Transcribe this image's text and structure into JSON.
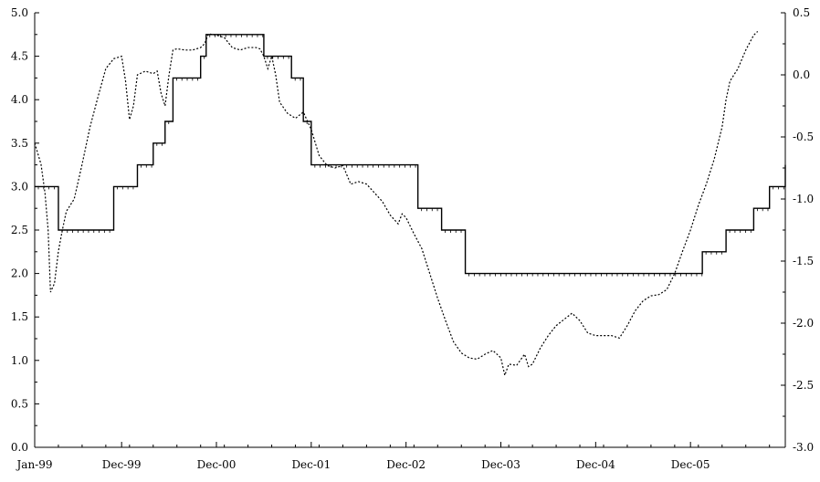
{
  "chart_data": {
    "type": "line",
    "x_tick_labels": [
      "Jan-99",
      "Dec-99",
      "Dec-00",
      "Dec-01",
      "Dec-02",
      "Dec-03",
      "Dec-04",
      "Dec-05"
    ],
    "x_tick_months": [
      0,
      11,
      23,
      35,
      47,
      59,
      71,
      83
    ],
    "x_range_months": [
      0,
      95
    ],
    "left_axis": {
      "ylim": [
        0.0,
        5.0
      ],
      "tick_labels": [
        "0.0",
        "0.5",
        "1.0",
        "1.5",
        "2.0",
        "2.5",
        "3.0",
        "3.5",
        "4.0",
        "4.5",
        "5.0"
      ]
    },
    "right_axis": {
      "ylim": [
        -3.0,
        0.5
      ],
      "tick_labels": [
        "-3.0",
        "-2.5",
        "-2.0",
        "-1.5",
        "-1.0",
        "-0.5",
        "0.0",
        "0.5"
      ]
    },
    "grid": false,
    "legend": "none",
    "series": [
      {
        "axis": "left",
        "style": "solid-step",
        "color": "#000000",
        "points": [
          [
            0,
            3.0
          ],
          [
            3,
            2.5
          ],
          [
            10,
            3.0
          ],
          [
            13,
            3.25
          ],
          [
            15,
            3.5
          ],
          [
            16.5,
            3.75
          ],
          [
            17.5,
            4.25
          ],
          [
            21,
            4.5
          ],
          [
            21.7,
            4.75
          ],
          [
            29,
            4.5
          ],
          [
            32.5,
            4.25
          ],
          [
            34,
            3.75
          ],
          [
            35,
            3.25
          ],
          [
            48.5,
            2.75
          ],
          [
            51.5,
            2.5
          ],
          [
            54.5,
            2.0
          ],
          [
            84.5,
            2.25
          ],
          [
            87.5,
            2.5
          ],
          [
            91,
            2.75
          ],
          [
            93,
            3.0
          ],
          [
            95,
            3.25
          ]
        ]
      },
      {
        "axis": "right",
        "style": "dotted",
        "color": "#000000",
        "points": [
          [
            0,
            -0.55
          ],
          [
            0.8,
            -0.72
          ],
          [
            1.3,
            -0.95
          ],
          [
            1.7,
            -1.25
          ],
          [
            2.0,
            -1.75
          ],
          [
            2.5,
            -1.68
          ],
          [
            3,
            -1.42
          ],
          [
            3.5,
            -1.25
          ],
          [
            4,
            -1.1
          ],
          [
            5,
            -1.0
          ],
          [
            6,
            -0.72
          ],
          [
            7,
            -0.42
          ],
          [
            8,
            -0.18
          ],
          [
            9,
            0.05
          ],
          [
            10,
            0.13
          ],
          [
            11,
            0.15
          ],
          [
            11.5,
            -0.05
          ],
          [
            12,
            -0.36
          ],
          [
            12.5,
            -0.25
          ],
          [
            13,
            0.0
          ],
          [
            14,
            0.03
          ],
          [
            15,
            0.01
          ],
          [
            15.5,
            0.03
          ],
          [
            16,
            -0.15
          ],
          [
            16.5,
            -0.25
          ],
          [
            17,
            0.0
          ],
          [
            17.5,
            0.2
          ],
          [
            18,
            0.21
          ],
          [
            19,
            0.2
          ],
          [
            20,
            0.2
          ],
          [
            21,
            0.22
          ],
          [
            21.5,
            0.25
          ],
          [
            22,
            0.33
          ],
          [
            23,
            0.32
          ],
          [
            24,
            0.3
          ],
          [
            25,
            0.22
          ],
          [
            26,
            0.2
          ],
          [
            27,
            0.22
          ],
          [
            28,
            0.22
          ],
          [
            28.5,
            0.21
          ],
          [
            29,
            0.15
          ],
          [
            29.5,
            0.05
          ],
          [
            30,
            0.15
          ],
          [
            30.5,
            0.0
          ],
          [
            31,
            -0.22
          ],
          [
            32,
            -0.31
          ],
          [
            33,
            -0.35
          ],
          [
            34,
            -0.3
          ],
          [
            35,
            -0.44
          ],
          [
            36,
            -0.65
          ],
          [
            37,
            -0.73
          ],
          [
            38,
            -0.75
          ],
          [
            39,
            -0.73
          ],
          [
            40,
            -0.88
          ],
          [
            41,
            -0.86
          ],
          [
            42,
            -0.88
          ],
          [
            43,
            -0.95
          ],
          [
            44,
            -1.02
          ],
          [
            45,
            -1.13
          ],
          [
            46,
            -1.2
          ],
          [
            46.5,
            -1.12
          ],
          [
            47,
            -1.15
          ],
          [
            48,
            -1.28
          ],
          [
            49,
            -1.4
          ],
          [
            50,
            -1.6
          ],
          [
            51,
            -1.8
          ],
          [
            52,
            -1.98
          ],
          [
            53,
            -2.15
          ],
          [
            54,
            -2.24
          ],
          [
            55,
            -2.28
          ],
          [
            56,
            -2.29
          ],
          [
            57,
            -2.25
          ],
          [
            58,
            -2.22
          ],
          [
            59,
            -2.28
          ],
          [
            59.5,
            -2.42
          ],
          [
            60,
            -2.33
          ],
          [
            61,
            -2.34
          ],
          [
            62,
            -2.25
          ],
          [
            62.5,
            -2.35
          ],
          [
            63,
            -2.33
          ],
          [
            64,
            -2.2
          ],
          [
            65,
            -2.1
          ],
          [
            66,
            -2.02
          ],
          [
            67,
            -1.97
          ],
          [
            68,
            -1.92
          ],
          [
            69,
            -1.98
          ],
          [
            70,
            -2.08
          ],
          [
            71,
            -2.1
          ],
          [
            72,
            -2.1
          ],
          [
            73,
            -2.1
          ],
          [
            74,
            -2.12
          ],
          [
            75,
            -2.02
          ],
          [
            76,
            -1.9
          ],
          [
            77,
            -1.82
          ],
          [
            78,
            -1.78
          ],
          [
            79,
            -1.77
          ],
          [
            80,
            -1.73
          ],
          [
            81,
            -1.6
          ],
          [
            82,
            -1.42
          ],
          [
            83,
            -1.25
          ],
          [
            84,
            -1.05
          ],
          [
            85,
            -0.88
          ],
          [
            86,
            -0.68
          ],
          [
            87,
            -0.42
          ],
          [
            87.5,
            -0.2
          ],
          [
            88,
            -0.05
          ],
          [
            89,
            0.05
          ],
          [
            90,
            0.2
          ],
          [
            91,
            0.32
          ],
          [
            91.5,
            0.35
          ]
        ]
      }
    ]
  }
}
